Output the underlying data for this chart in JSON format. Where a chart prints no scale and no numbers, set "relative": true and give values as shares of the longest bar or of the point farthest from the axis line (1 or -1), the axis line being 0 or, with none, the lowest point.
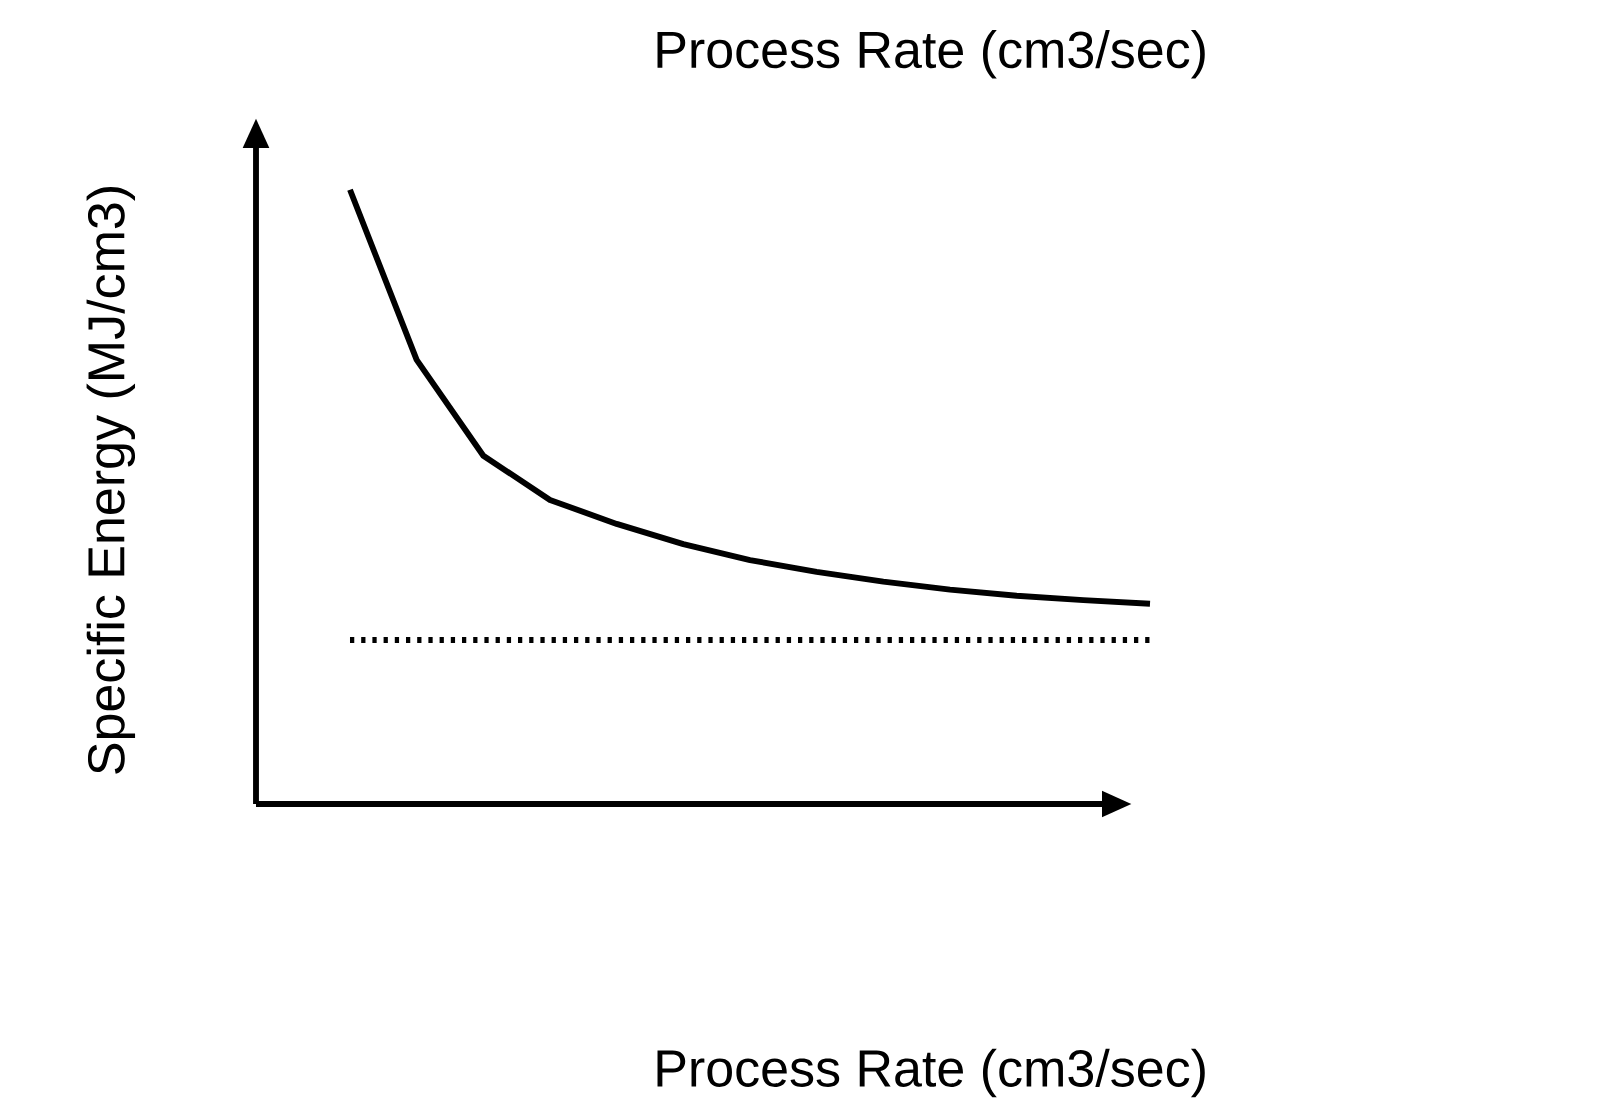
{
  "chart_data": {
    "type": "line",
    "relative": true,
    "title": "Process Rate (cm3/sec)",
    "xlabel": "Process Rate (cm3/sec)",
    "ylabel": "Specific Energy (MJ/cm3)",
    "categories": [
      null,
      null,
      null,
      null,
      null,
      null,
      null,
      null,
      null,
      null,
      null,
      null,
      null
    ],
    "series": [
      {
        "color": "#000000",
        "line_style": "solid",
        "values": [
          1,
          0.723,
          0.567,
          0.495,
          0.456,
          0.423,
          0.397,
          0.378,
          0.362,
          0.349,
          0.339,
          0.332,
          0.326
        ]
      },
      {
        "color": "#000000",
        "line_style": "dotted",
        "values": [
          0.267,
          0.267,
          0.267,
          0.267,
          0.267,
          0.267,
          0.267,
          0.267,
          0.267,
          0.267,
          0.267,
          0.267,
          0.267
        ]
      }
    ]
  }
}
